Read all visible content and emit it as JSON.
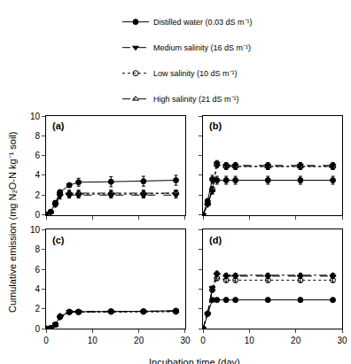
{
  "chart_data": {
    "type": "line",
    "x_label": "Incubation time (day)",
    "y_label": "Cumulative emission (mg N₂O-N kg⁻¹ soil)",
    "legend": "top",
    "xlim": [
      0,
      30
    ],
    "xticks": [
      0,
      10,
      20,
      30
    ],
    "ylim": [
      0,
      10
    ],
    "yticks": [
      0,
      2,
      4,
      6,
      8,
      10
    ],
    "x": [
      0,
      1,
      2,
      3,
      5,
      7,
      14,
      21,
      28
    ],
    "series": [
      {
        "name": "Distilled water (0.03 dS m⁻¹)",
        "color": "#000000",
        "marker": "circle",
        "line_style": "solid"
      },
      {
        "name": "Medium salinity (16 dS m⁻¹)",
        "color": "#000000",
        "marker": "triangle-down",
        "line_style": "dash"
      },
      {
        "name": "Low salinity (10 dS m⁻¹)",
        "color": "#000000",
        "marker": "circle-open",
        "line_style": "dot"
      },
      {
        "name": "High salinity (21 dS m⁻¹)",
        "color": "#000000",
        "marker": "triangle-up-open",
        "line_style": "dashdot"
      }
    ],
    "panels": [
      {
        "title": "(a)",
        "values": [
          [
            0,
            0.3,
            1.2,
            2.3,
            3.0,
            3.3,
            3.35,
            3.4,
            3.5
          ],
          [
            0,
            0.2,
            1.0,
            1.9,
            2.0,
            2.0,
            2.0,
            2.0,
            2.0
          ],
          [
            0,
            0.3,
            1.1,
            2.2,
            2.1,
            2.1,
            2.1,
            2.1,
            2.2
          ],
          [
            0,
            0.3,
            1.2,
            2.2,
            2.2,
            2.2,
            2.2,
            2.2,
            2.2
          ]
        ],
        "errors": [
          [
            0,
            0.1,
            0.2,
            0.2,
            0.2,
            0.4,
            0.5,
            0.5,
            0.5
          ],
          [
            0,
            0.1,
            0.2,
            0.3,
            0.3,
            0.3,
            0.3,
            0.3,
            0.3
          ],
          [
            0,
            0.1,
            0.2,
            0.2,
            0.3,
            0.3,
            0.3,
            0.3,
            0.3
          ],
          [
            0,
            0.1,
            0.2,
            0.2,
            0.3,
            0.3,
            0.3,
            0.3,
            0.3
          ]
        ]
      },
      {
        "title": "(b)",
        "values": [
          [
            0,
            1.4,
            3.6,
            3.5,
            3.5,
            3.5,
            3.5,
            3.5,
            3.5
          ],
          [
            0,
            1.0,
            2.4,
            5.2,
            5.0,
            5.0,
            5.0,
            5.0,
            5.0
          ],
          [
            0,
            1.2,
            2.6,
            5.1,
            4.9,
            4.9,
            4.9,
            4.9,
            4.9
          ],
          [
            0,
            1.1,
            2.5,
            5.1,
            4.9,
            4.9,
            4.9,
            4.9,
            4.9
          ]
        ],
        "errors": [
          [
            0,
            0.2,
            0.4,
            0.4,
            0.4,
            0.4,
            0.4,
            0.4,
            0.4
          ],
          [
            0,
            0.1,
            0.3,
            0.3,
            0.3,
            0.3,
            0.3,
            0.3,
            0.3
          ],
          [
            0,
            0.1,
            0.3,
            0.3,
            0.3,
            0.3,
            0.3,
            0.3,
            0.3
          ],
          [
            0,
            0.1,
            0.3,
            0.3,
            0.3,
            0.3,
            0.3,
            0.3,
            0.3
          ]
        ]
      },
      {
        "title": "(c)",
        "values": [
          [
            0,
            0.05,
            0.4,
            1.2,
            1.7,
            1.7,
            1.75,
            1.75,
            1.8
          ],
          [
            0,
            0.05,
            0.4,
            1.1,
            1.7,
            1.7,
            1.7,
            1.7,
            1.75
          ],
          [
            0,
            0.05,
            0.4,
            1.2,
            1.65,
            1.65,
            1.7,
            1.7,
            1.7
          ],
          [
            0,
            0.05,
            0.35,
            1.3,
            1.7,
            1.7,
            1.75,
            1.75,
            1.8
          ]
        ],
        "errors": [
          [
            0,
            0.02,
            0.05,
            0.1,
            0.1,
            0.1,
            0.1,
            0.1,
            0.1
          ],
          [
            0,
            0.02,
            0.05,
            0.1,
            0.1,
            0.1,
            0.1,
            0.1,
            0.1
          ],
          [
            0,
            0.02,
            0.05,
            0.1,
            0.1,
            0.1,
            0.1,
            0.1,
            0.1
          ],
          [
            0,
            0.02,
            0.05,
            0.1,
            0.1,
            0.1,
            0.1,
            0.1,
            0.1
          ]
        ]
      },
      {
        "title": "(d)",
        "values": [
          [
            0,
            1.5,
            2.9,
            2.9,
            2.9,
            2.9,
            2.9,
            2.9,
            2.9
          ],
          [
            0,
            1.5,
            4.1,
            5.5,
            5.3,
            5.3,
            5.3,
            5.3,
            5.3
          ],
          [
            0,
            1.5,
            3.9,
            5.1,
            4.9,
            4.9,
            4.9,
            4.9,
            4.9
          ],
          [
            0,
            1.6,
            4.0,
            5.6,
            5.4,
            5.4,
            5.4,
            5.4,
            5.4
          ]
        ],
        "errors": [
          [
            0,
            0.1,
            0.1,
            0.1,
            0.1,
            0.1,
            0.1,
            0.1,
            0.1
          ],
          [
            0,
            0.1,
            0.2,
            0.2,
            0.2,
            0.2,
            0.2,
            0.2,
            0.2
          ],
          [
            0,
            0.1,
            0.2,
            0.2,
            0.2,
            0.2,
            0.2,
            0.2,
            0.2
          ],
          [
            0,
            0.1,
            0.2,
            0.2,
            0.2,
            0.2,
            0.2,
            0.2,
            0.2
          ]
        ]
      }
    ]
  }
}
